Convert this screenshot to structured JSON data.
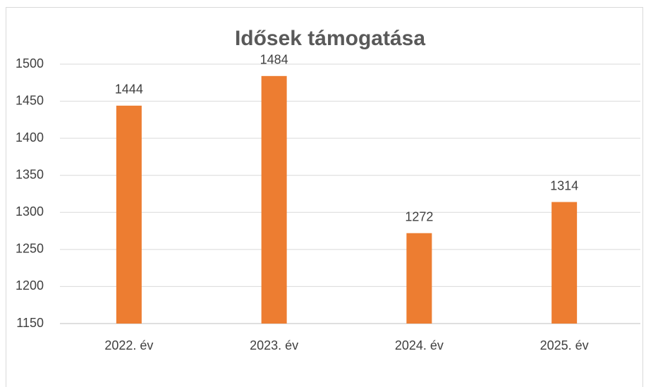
{
  "chart_data": {
    "type": "bar",
    "title": "Idősek támogatása",
    "categories": [
      "2022. év",
      "2023. év",
      "2024. év",
      "2025. év"
    ],
    "values": [
      1444,
      1484,
      1272,
      1314
    ],
    "color": "#ed7d31",
    "ylim": [
      1150,
      1500
    ],
    "yticks": [
      1150,
      1200,
      1250,
      1300,
      1350,
      1400,
      1450,
      1500
    ],
    "grid": true
  }
}
